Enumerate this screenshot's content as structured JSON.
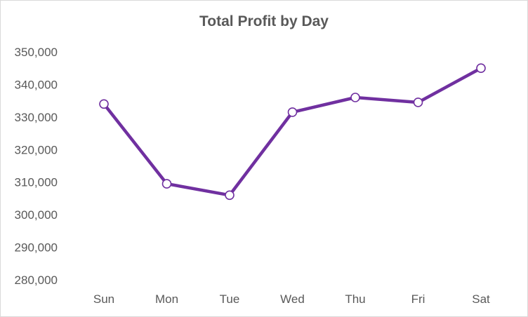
{
  "chart_data": {
    "type": "line",
    "title": "Total Profit by Day",
    "xlabel": "",
    "ylabel": "",
    "categories": [
      "Sun",
      "Mon",
      "Tue",
      "Wed",
      "Thu",
      "Fri",
      "Sat"
    ],
    "series": [
      {
        "values": [
          334000,
          309500,
          306000,
          331500,
          336000,
          334500,
          345000
        ]
      }
    ],
    "ylim": [
      280000,
      350000
    ],
    "y_ticks": [
      "280,000",
      "290,000",
      "300,000",
      "310,000",
      "320,000",
      "330,000",
      "340,000",
      "350,000"
    ],
    "y_tick_values": [
      280000,
      290000,
      300000,
      310000,
      320000,
      330000,
      340000,
      350000
    ],
    "grid": false,
    "legend": "none",
    "line_color": "#7030a0",
    "marker": "open-circle"
  }
}
